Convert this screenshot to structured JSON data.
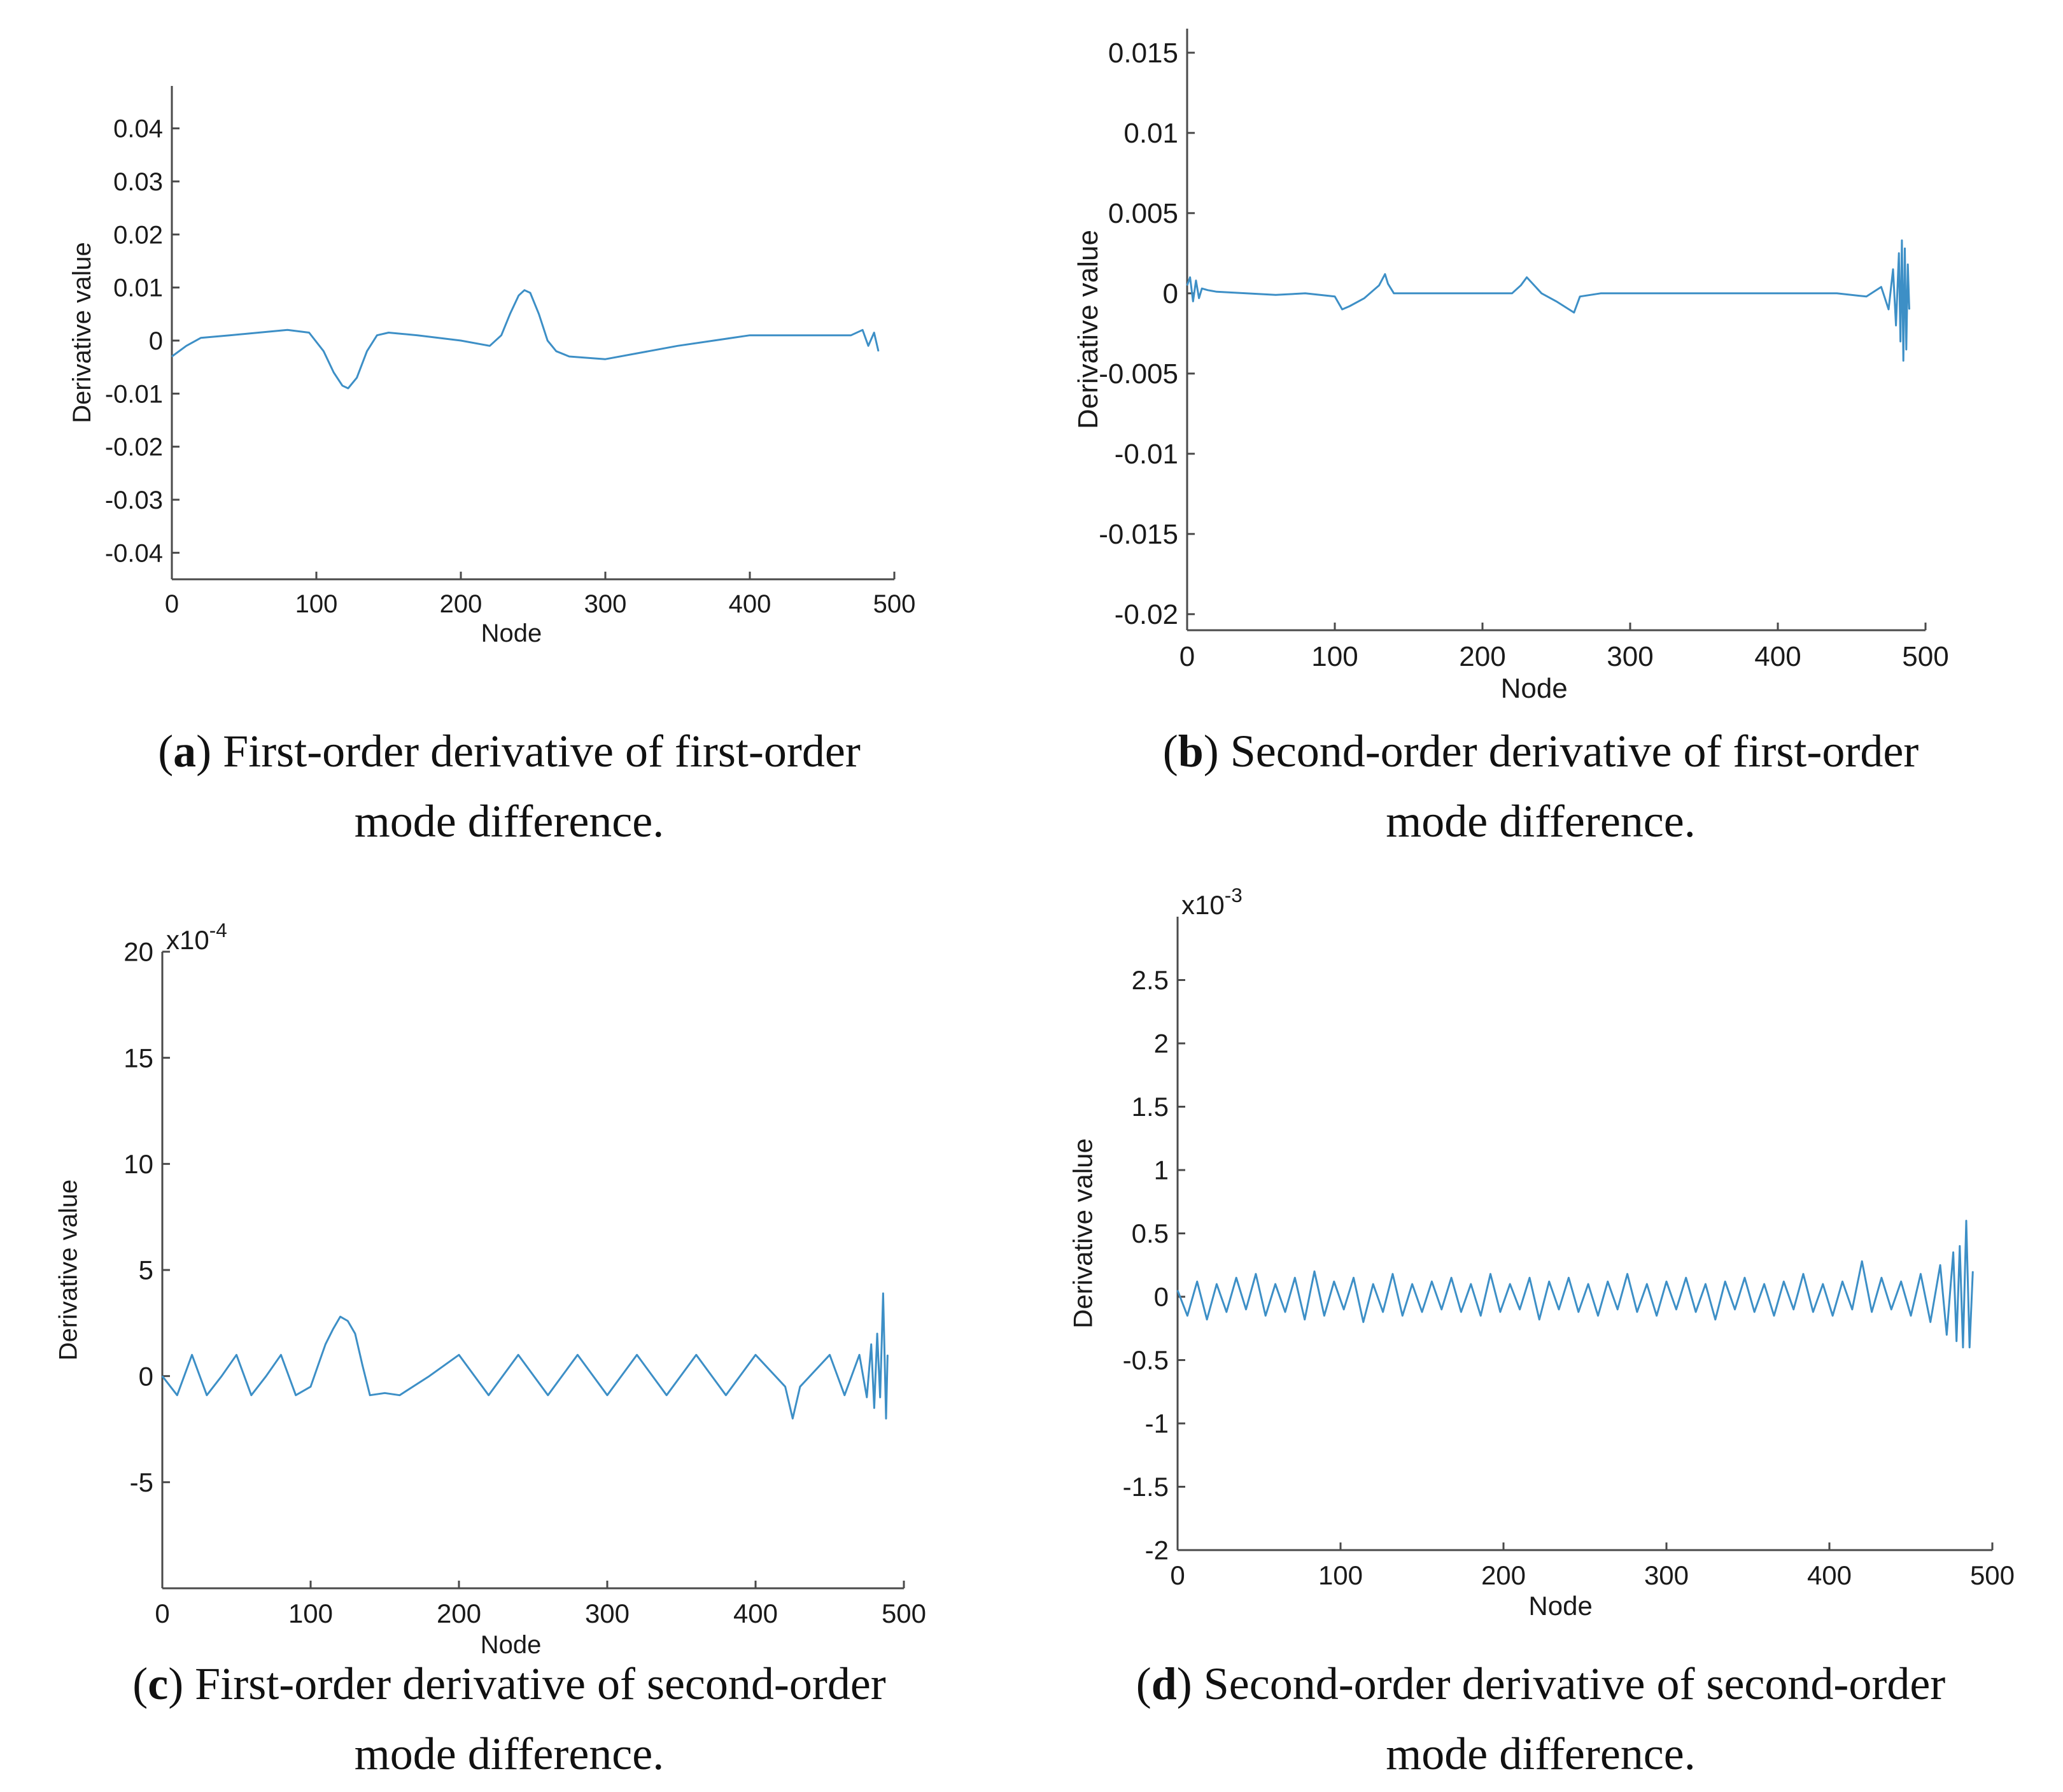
{
  "panels": [
    {
      "id": "a",
      "caption": {
        "letter": "a",
        "line1": "First-order derivative of first-order",
        "line2": "mode difference."
      }
    },
    {
      "id": "b",
      "caption": {
        "letter": "b",
        "line1": "Second-order derivative of first-order",
        "line2": "mode difference."
      }
    },
    {
      "id": "c",
      "caption": {
        "letter": "c",
        "line1": "First-order derivative of second-order",
        "line2": "mode difference."
      }
    },
    {
      "id": "d",
      "caption": {
        "letter": "d",
        "line1": "Second-order derivative of second-order",
        "line2": "mode difference."
      }
    }
  ],
  "colors": {
    "line": "#3d8fc6",
    "axis": "#4a4a4a"
  },
  "chart_data": [
    {
      "type": "line",
      "panel": "a",
      "xlabel": "Node",
      "ylabel": "Derivative value",
      "xlim": [
        0,
        500
      ],
      "ylim": [
        -0.045,
        0.048
      ],
      "xticks": [
        0,
        100,
        200,
        300,
        400,
        500
      ],
      "xtick_labels": [
        "0",
        "100",
        "200",
        "300",
        "400",
        "500"
      ],
      "yticks": [
        -0.04,
        -0.03,
        -0.02,
        -0.01,
        0,
        0.01,
        0.02,
        0.03,
        0.04
      ],
      "ytick_labels": [
        "-0.04",
        "-0.03",
        "-0.02",
        "-0.01",
        "0",
        "0.01",
        "0.02",
        "0.03",
        "0.04"
      ],
      "exponent_label": "",
      "series": [
        {
          "name": "derivative",
          "x": [
            0,
            10,
            20,
            40,
            60,
            80,
            95,
            105,
            112,
            118,
            122,
            128,
            135,
            142,
            150,
            170,
            200,
            220,
            228,
            234,
            240,
            244,
            248,
            254,
            260,
            266,
            275,
            300,
            350,
            400,
            450,
            470,
            478,
            482,
            486,
            489
          ],
          "y": [
            -0.003,
            -0.001,
            0.0005,
            0.001,
            0.0015,
            0.002,
            0.0015,
            -0.002,
            -0.006,
            -0.0085,
            -0.009,
            -0.007,
            -0.002,
            0.001,
            0.0015,
            0.001,
            0.0,
            -0.001,
            0.001,
            0.005,
            0.0085,
            0.0095,
            0.009,
            0.005,
            0.0,
            -0.002,
            -0.003,
            -0.0035,
            -0.001,
            0.001,
            0.001,
            0.001,
            0.002,
            -0.001,
            0.0015,
            -0.002
          ]
        }
      ]
    },
    {
      "type": "line",
      "panel": "b",
      "xlabel": "Node",
      "ylabel": "Derivative value",
      "xlim": [
        0,
        500
      ],
      "ylim": [
        -0.021,
        0.0165
      ],
      "xticks": [
        0,
        100,
        200,
        300,
        400,
        500
      ],
      "xtick_labels": [
        "0",
        "100",
        "200",
        "300",
        "400",
        "500"
      ],
      "yticks": [
        -0.02,
        -0.015,
        -0.01,
        -0.005,
        0,
        0.005,
        0.01,
        0.015
      ],
      "ytick_labels": [
        "-0.02",
        "-0.015",
        "-0.01",
        "-0.005",
        "0",
        "0.005",
        "0.01",
        "0.015"
      ],
      "exponent_label": "",
      "series": [
        {
          "name": "derivative",
          "x": [
            0,
            2,
            4,
            6,
            8,
            10,
            14,
            20,
            40,
            60,
            80,
            100,
            105,
            110,
            120,
            130,
            134,
            136,
            140,
            160,
            200,
            220,
            226,
            230,
            240,
            250,
            262,
            266,
            280,
            320,
            360,
            400,
            440,
            460,
            470,
            475,
            478,
            480,
            482,
            483,
            484,
            485,
            486,
            487,
            488,
            489
          ],
          "y": [
            0.0005,
            0.001,
            -0.0005,
            0.0008,
            -0.0003,
            0.0003,
            0.0002,
            0.0001,
            0.0,
            -0.0001,
            0.0,
            -0.0002,
            -0.001,
            -0.0008,
            -0.0003,
            0.0005,
            0.0012,
            0.0006,
            0.0,
            0.0,
            0.0,
            0.0,
            0.0005,
            0.001,
            0.0,
            -0.0005,
            -0.0012,
            -0.0002,
            0.0,
            0.0,
            0.0,
            0.0,
            0.0,
            -0.0002,
            0.0004,
            -0.001,
            0.0015,
            -0.002,
            0.0025,
            -0.003,
            0.0033,
            -0.0042,
            0.0028,
            -0.0035,
            0.0018,
            -0.001
          ]
        }
      ]
    },
    {
      "type": "line",
      "panel": "c",
      "xlabel": "Node",
      "ylabel": "Derivative value",
      "xlim": [
        0,
        500
      ],
      "ylim": [
        -10,
        20
      ],
      "xticks": [
        0,
        100,
        200,
        300,
        400,
        500
      ],
      "xtick_labels": [
        "0",
        "100",
        "200",
        "300",
        "400",
        "500"
      ],
      "yticks": [
        -5,
        0,
        5,
        10,
        15,
        20
      ],
      "ytick_labels": [
        "-5",
        "0",
        "5",
        "10",
        "15",
        "20"
      ],
      "exponent_label": "x10-4",
      "series": [
        {
          "name": "derivative",
          "x": [
            0,
            10,
            20,
            30,
            40,
            50,
            60,
            70,
            80,
            90,
            100,
            105,
            110,
            115,
            120,
            125,
            130,
            135,
            140,
            150,
            160,
            180,
            200,
            220,
            240,
            260,
            280,
            300,
            320,
            340,
            360,
            380,
            400,
            420,
            425,
            430,
            450,
            460,
            470,
            475,
            478,
            480,
            482,
            484,
            486,
            488,
            489
          ],
          "y": [
            0,
            -0.9,
            1,
            -0.9,
            0,
            1,
            -0.9,
            0,
            1,
            -0.9,
            -0.5,
            0.5,
            1.5,
            2.2,
            2.8,
            2.6,
            2,
            0.5,
            -0.9,
            -0.8,
            -0.9,
            0,
            1,
            -0.9,
            1,
            -0.9,
            1,
            -0.9,
            1,
            -0.9,
            1,
            -0.9,
            1,
            -0.5,
            -2,
            -0.5,
            1,
            -0.9,
            1,
            -1,
            1.5,
            -1.5,
            2,
            -1,
            3.9,
            -2,
            1
          ]
        }
      ]
    },
    {
      "type": "line",
      "panel": "d",
      "xlabel": "Node",
      "ylabel": "Derivative value",
      "xlim": [
        0,
        500
      ],
      "ylim": [
        -2,
        3
      ],
      "xticks": [
        0,
        100,
        200,
        300,
        400,
        500
      ],
      "xtick_labels": [
        "0",
        "100",
        "200",
        "300",
        "400",
        "500"
      ],
      "yticks": [
        -2,
        -1.5,
        -1,
        -0.5,
        0,
        0.5,
        1,
        1.5,
        2,
        2.5
      ],
      "ytick_labels": [
        "-2",
        "-1.5",
        "-1",
        "-0.5",
        "0",
        "0.5",
        "1",
        "1.5",
        "2",
        "2.5"
      ],
      "exponent_label": "x10-3",
      "series": [
        {
          "name": "derivative",
          "x": [
            0,
            6,
            12,
            18,
            24,
            30,
            36,
            42,
            48,
            54,
            60,
            66,
            72,
            78,
            84,
            90,
            96,
            102,
            108,
            114,
            120,
            126,
            132,
            138,
            144,
            150,
            156,
            162,
            168,
            174,
            180,
            186,
            192,
            198,
            204,
            210,
            216,
            222,
            228,
            234,
            240,
            246,
            252,
            258,
            264,
            270,
            276,
            282,
            288,
            294,
            300,
            306,
            312,
            318,
            324,
            330,
            336,
            342,
            348,
            354,
            360,
            366,
            372,
            378,
            384,
            390,
            396,
            402,
            408,
            414,
            420,
            426,
            432,
            438,
            444,
            450,
            456,
            462,
            468,
            472,
            476,
            478,
            480,
            482,
            484,
            486,
            488
          ],
          "y": [
            0.05,
            -0.15,
            0.12,
            -0.18,
            0.1,
            -0.12,
            0.15,
            -0.1,
            0.18,
            -0.15,
            0.1,
            -0.12,
            0.15,
            -0.18,
            0.2,
            -0.15,
            0.12,
            -0.1,
            0.15,
            -0.2,
            0.1,
            -0.12,
            0.18,
            -0.15,
            0.1,
            -0.12,
            0.12,
            -0.1,
            0.15,
            -0.12,
            0.1,
            -0.15,
            0.18,
            -0.12,
            0.1,
            -0.1,
            0.15,
            -0.18,
            0.12,
            -0.1,
            0.15,
            -0.12,
            0.1,
            -0.15,
            0.12,
            -0.1,
            0.18,
            -0.12,
            0.1,
            -0.15,
            0.12,
            -0.1,
            0.15,
            -0.12,
            0.1,
            -0.18,
            0.12,
            -0.1,
            0.15,
            -0.12,
            0.1,
            -0.15,
            0.12,
            -0.1,
            0.18,
            -0.12,
            0.1,
            -0.15,
            0.12,
            -0.1,
            0.28,
            -0.12,
            0.15,
            -0.1,
            0.12,
            -0.15,
            0.18,
            -0.2,
            0.25,
            -0.3,
            0.35,
            -0.35,
            0.4,
            -0.4,
            0.6,
            -0.4,
            0.2
          ]
        }
      ]
    }
  ]
}
